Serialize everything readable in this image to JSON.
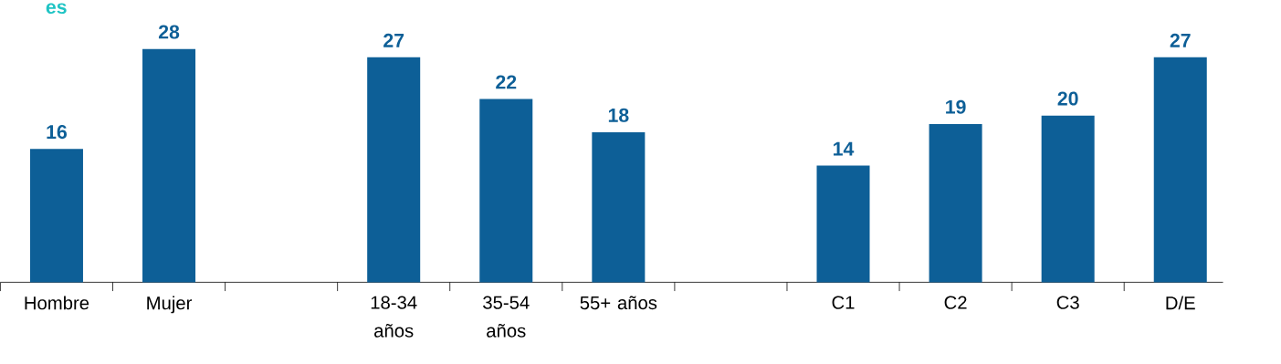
{
  "chart_data": {
    "type": "bar",
    "title": "es",
    "categories": [
      "Hombre",
      "Mujer",
      null,
      "18-34 años",
      "35-54 años",
      "55+ años",
      null,
      "C1",
      "C2",
      "C3",
      "D/E"
    ],
    "values": [
      16,
      28,
      null,
      27,
      22,
      18,
      null,
      14,
      19,
      20,
      27
    ],
    "color": "#0d5f97",
    "data_labels": true
  }
}
